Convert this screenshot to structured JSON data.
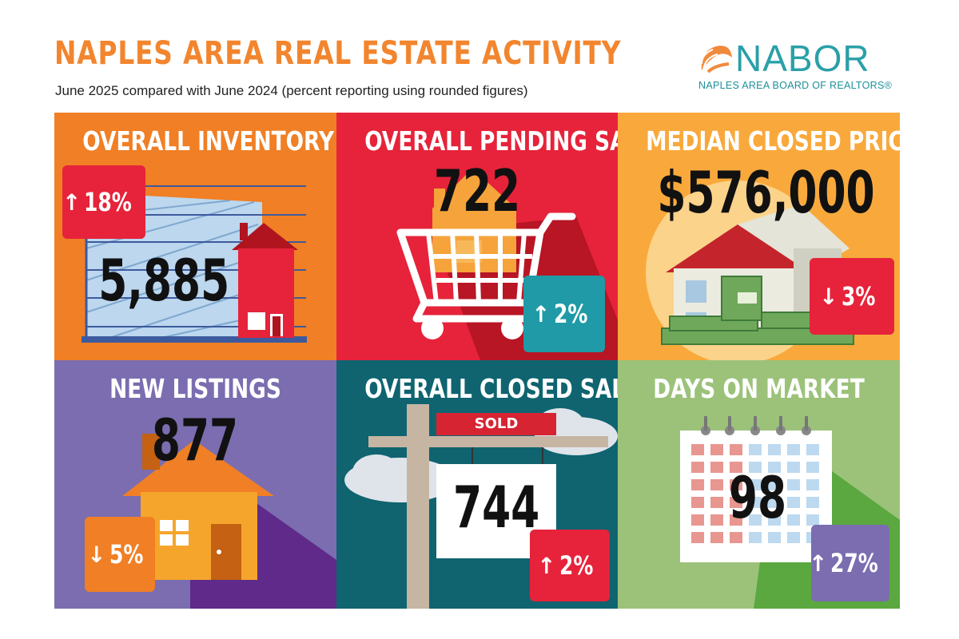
{
  "header": {
    "title": "NAPLES AREA REAL ESTATE ACTIVITY",
    "subtitle": "June 2025 compared with June 2024 (percent reporting using rounded figures)"
  },
  "logo": {
    "wordmark": "NABOR",
    "tagline": "NAPLES AREA BOARD OF REALTORS®"
  },
  "colors": {
    "orange": "#f07f25",
    "red": "#e6233a",
    "amber": "#f9a93c",
    "purple": "#7b6db0",
    "teal": "#0f6470",
    "green": "#9cc27a"
  },
  "tiles": [
    {
      "heading": "OVERALL INVENTORY",
      "value": "5,885",
      "direction": "up",
      "change": "18%",
      "badge_color": "#e6233a",
      "icon": "house-chart-icon"
    },
    {
      "heading": "OVERALL PENDING SALES",
      "value": "722",
      "direction": "up",
      "change": "2%",
      "badge_color": "#1f9aa6",
      "icon": "shopping-cart-icon"
    },
    {
      "heading": "MEDIAN CLOSED PRICE",
      "value": "$576,000",
      "direction": "down",
      "change": "3%",
      "badge_color": "#e6233a",
      "icon": "house-money-icon"
    },
    {
      "heading": "NEW LISTINGS",
      "value": "877",
      "direction": "down",
      "change": "5%",
      "badge_color": "#f07f25",
      "icon": "house-icon"
    },
    {
      "heading": "OVERALL CLOSED SALES",
      "value": "744",
      "direction": "up",
      "change": "2%",
      "badge_color": "#e6233a",
      "icon": "sold-sign-icon",
      "sign_text": "SOLD"
    },
    {
      "heading": "DAYS ON MARKET",
      "value": "98",
      "direction": "up",
      "change": "27%",
      "badge_color": "#7b6db0",
      "icon": "calendar-icon"
    }
  ],
  "arrows": {
    "up": "↑",
    "down": "↓"
  }
}
